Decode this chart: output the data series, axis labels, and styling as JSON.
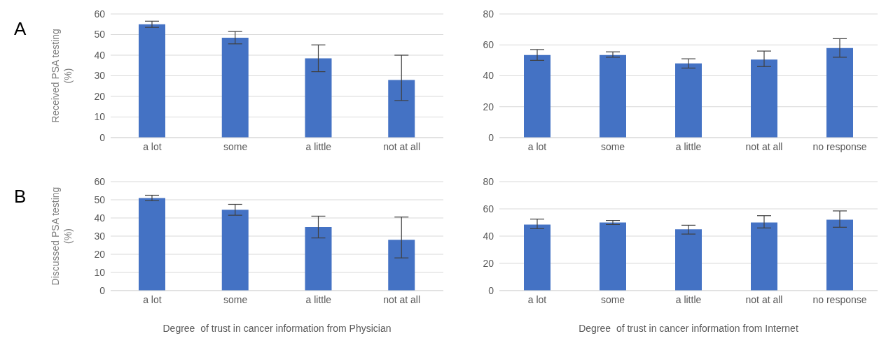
{
  "chart_data": [
    {
      "type": "bar",
      "annotations": [
        "A"
      ],
      "ylabel": "Received PSA testing (%)",
      "categories": [
        "a lot",
        "some",
        "a little",
        "not at all"
      ],
      "values": [
        55,
        48.5,
        38.5,
        28
      ],
      "errors": [
        [
          53.5,
          56.5
        ],
        [
          45.5,
          51.5
        ],
        [
          32,
          45
        ],
        [
          18,
          40
        ]
      ],
      "color": "#4472c4",
      "ylim": [
        0,
        60
      ],
      "yticks": [
        0,
        10,
        20,
        30,
        40,
        50,
        60
      ],
      "grid": "y"
    },
    {
      "type": "bar",
      "categories": [
        "a lot",
        "some",
        "a little",
        "not at all",
        "no response"
      ],
      "values": [
        53.5,
        53.5,
        48,
        50.5,
        58
      ],
      "errors": [
        [
          50,
          57
        ],
        [
          52,
          55.5
        ],
        [
          45,
          51
        ],
        [
          46,
          56
        ],
        [
          52,
          64
        ]
      ],
      "color": "#4472c4",
      "ylim": [
        0,
        80
      ],
      "yticks": [
        0,
        20,
        40,
        60,
        80
      ],
      "grid": "y"
    },
    {
      "type": "bar",
      "annotations": [
        "B"
      ],
      "ylabel": "Discussed PSA testing (%)",
      "xlabel": "Degree  of trust in cancer information from Physician",
      "categories": [
        "a lot",
        "some",
        "a little",
        "not at all"
      ],
      "values": [
        51,
        44.5,
        35,
        28
      ],
      "errors": [
        [
          49.5,
          52.5
        ],
        [
          41.5,
          47.5
        ],
        [
          29,
          41
        ],
        [
          18,
          40.5
        ]
      ],
      "color": "#4472c4",
      "ylim": [
        0,
        60
      ],
      "yticks": [
        0,
        10,
        20,
        30,
        40,
        50,
        60
      ],
      "grid": "y"
    },
    {
      "type": "bar",
      "xlabel": "Degree  of trust in cancer information from Internet",
      "categories": [
        "a lot",
        "some",
        "a little",
        "not at all",
        "no response"
      ],
      "values": [
        48.5,
        50,
        45,
        50,
        52
      ],
      "errors": [
        [
          45.5,
          52.5
        ],
        [
          48.5,
          51.5
        ],
        [
          41.5,
          48
        ],
        [
          46,
          55
        ],
        [
          46.5,
          58.5
        ]
      ],
      "color": "#4472c4",
      "ylim": [
        0,
        80
      ],
      "yticks": [
        0,
        20,
        40,
        60,
        80
      ],
      "grid": "y"
    }
  ]
}
